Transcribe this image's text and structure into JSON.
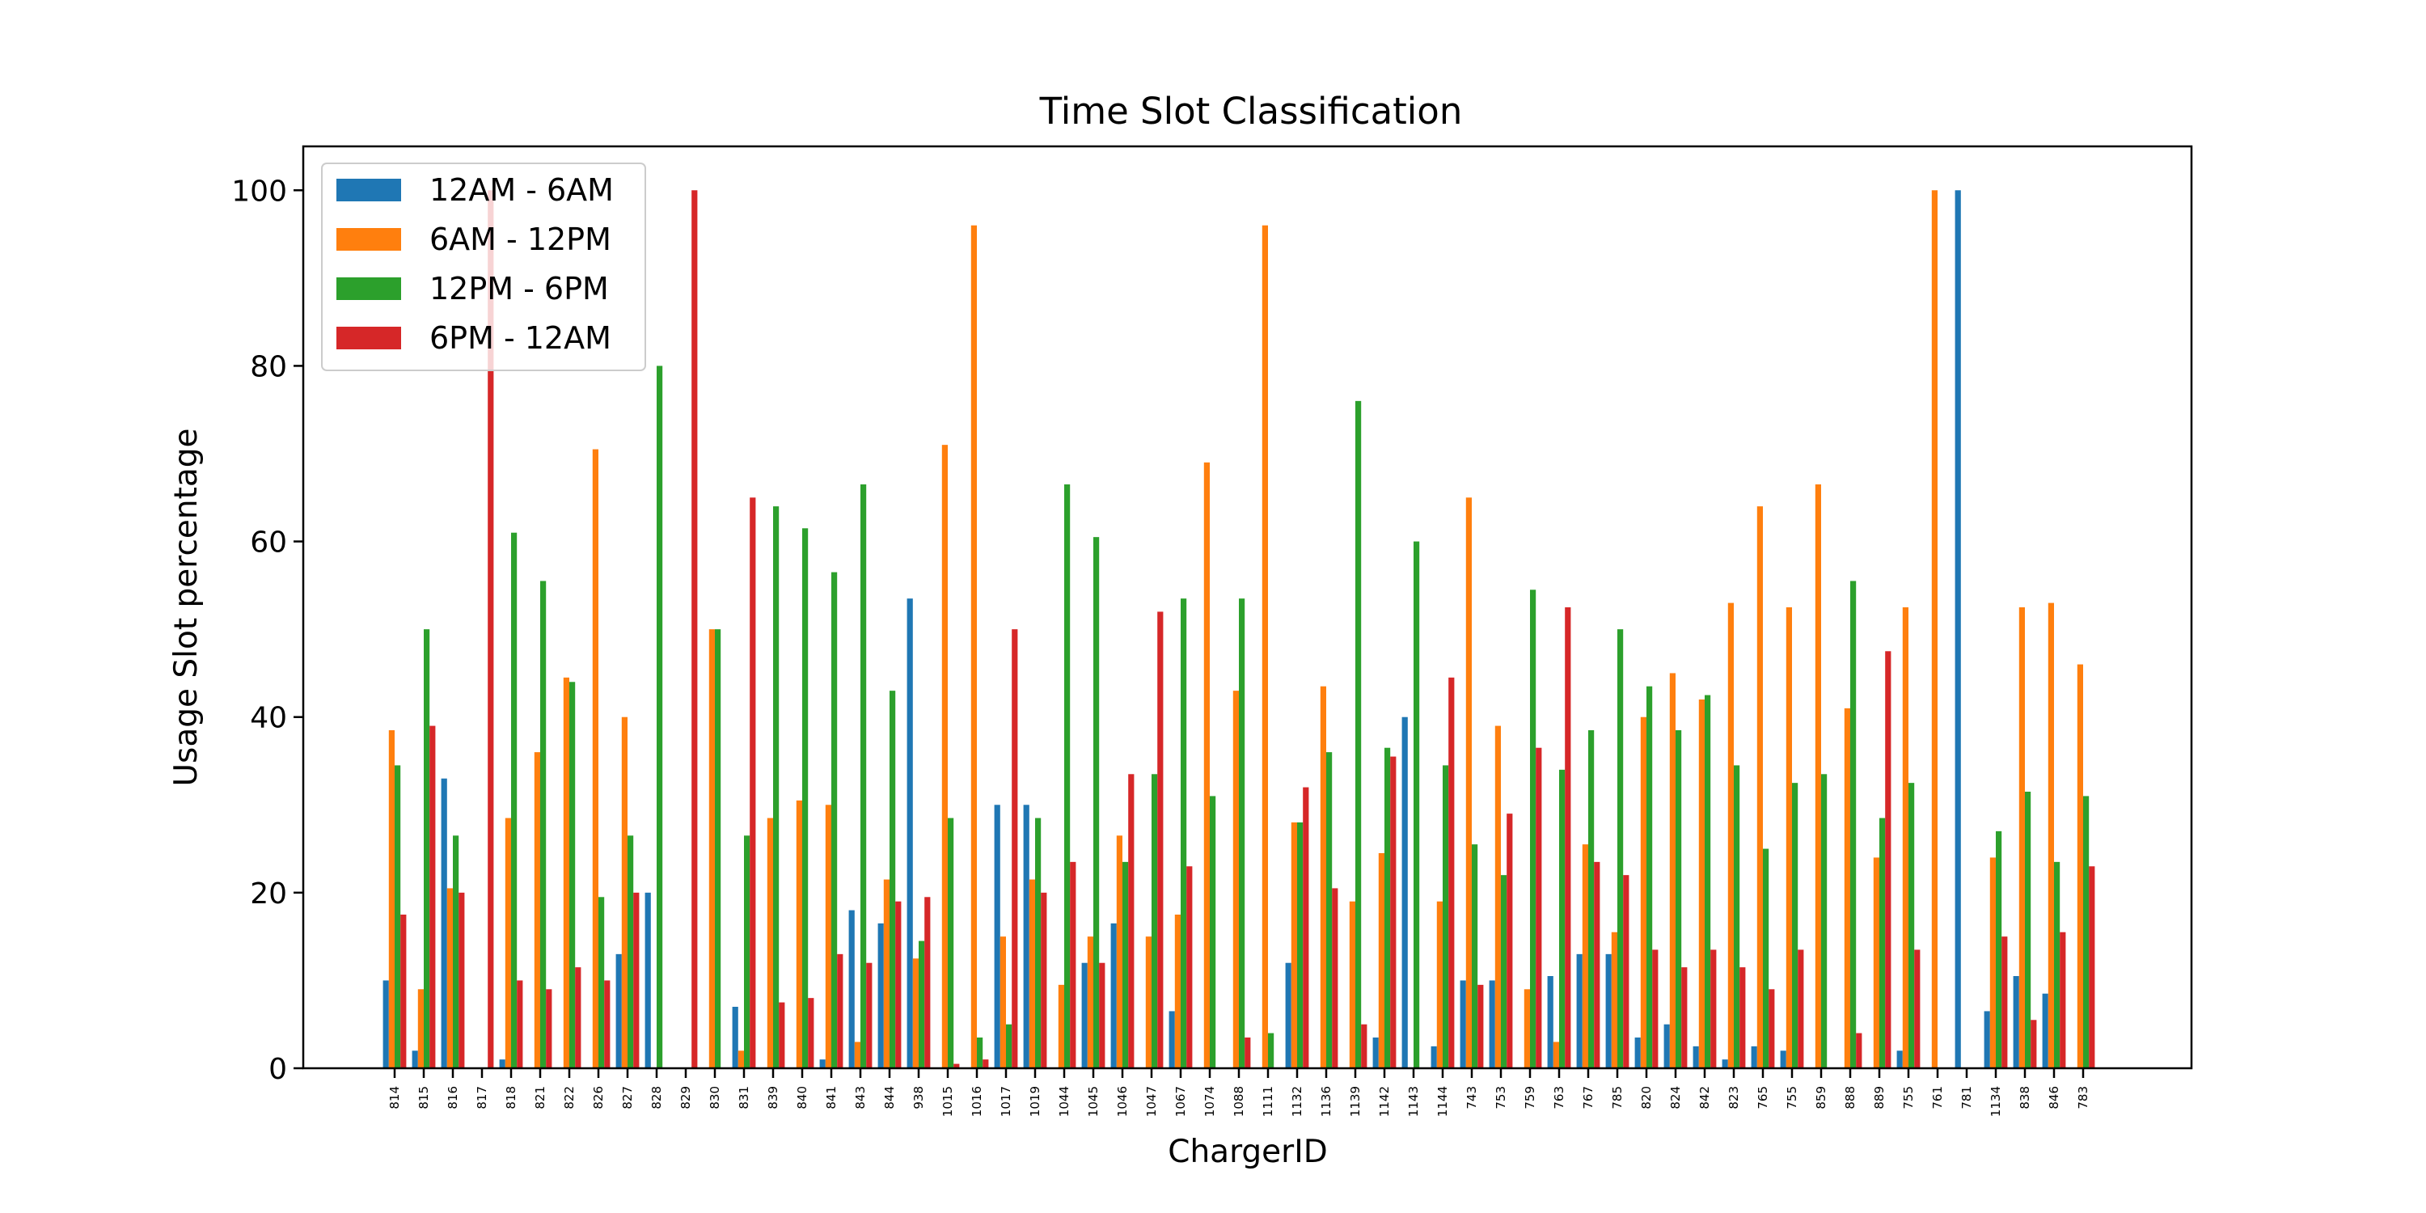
{
  "chart_data": {
    "type": "bar",
    "title": "Time Slot Classification",
    "xlabel": "ChargerID",
    "ylabel": "Usage Slot percentage",
    "ylim": [
      0,
      105
    ],
    "yticks": [
      0,
      20,
      40,
      60,
      80,
      100
    ],
    "grid": false,
    "legend_position": "top-left",
    "categories": [
      "814",
      "815",
      "816",
      "817",
      "818",
      "821",
      "822",
      "826",
      "827",
      "828",
      "829",
      "830",
      "831",
      "839",
      "840",
      "841",
      "843",
      "844",
      "938",
      "1015",
      "1016",
      "1017",
      "1019",
      "1044",
      "1045",
      "1046",
      "1047",
      "1067",
      "1074",
      "1088",
      "1111",
      "1132",
      "1136",
      "1139",
      "1142",
      "1143",
      "1144",
      "743",
      "753",
      "759",
      "763",
      "767",
      "785",
      "820",
      "824",
      "842",
      "823",
      "765",
      "755",
      "859",
      "888",
      "889",
      "755",
      "761",
      "781",
      "1134",
      "838",
      "846",
      "783"
    ],
    "series": [
      {
        "name": "12AM - 6AM",
        "color": "#1f77b4",
        "values": [
          10,
          2,
          33,
          0,
          1,
          0,
          0,
          0,
          13,
          20,
          0,
          0,
          7,
          0,
          0,
          1,
          18,
          16.5,
          53.5,
          0,
          0,
          30,
          30,
          0,
          12,
          16.5,
          0,
          6.5,
          0,
          0,
          0,
          12,
          0,
          0,
          3.5,
          40,
          2.5,
          10,
          10,
          0,
          10.5,
          13,
          13,
          3.5,
          5,
          2.5,
          1,
          2.5,
          2,
          0,
          0,
          0,
          2,
          0,
          100,
          6.5,
          10.5,
          8.5,
          0
        ]
      },
      {
        "name": "6AM - 12PM",
        "color": "#ff7f0e",
        "values": [
          38.5,
          9,
          20.5,
          0,
          28.5,
          36,
          44.5,
          70.5,
          40,
          0,
          0,
          50,
          2,
          28.5,
          30.5,
          30,
          3,
          21.5,
          12.5,
          71,
          96,
          15,
          21.5,
          9.5,
          15,
          26.5,
          15,
          17.5,
          69,
          43,
          96,
          28,
          43.5,
          19,
          24.5,
          0,
          19,
          65,
          39,
          9,
          3,
          25.5,
          15.5,
          40,
          45,
          42,
          53,
          64,
          52.5,
          66.5,
          41,
          24,
          52.5,
          100,
          0,
          24,
          52.5,
          53,
          46
        ]
      },
      {
        "name": "12PM - 6PM",
        "color": "#2ca02c",
        "values": [
          34.5,
          50,
          26.5,
          0,
          61,
          55.5,
          44,
          19.5,
          26.5,
          80,
          0,
          50,
          26.5,
          64,
          61.5,
          56.5,
          66.5,
          43,
          14.5,
          28.5,
          3.5,
          5,
          28.5,
          66.5,
          60.5,
          23.5,
          33.5,
          53.5,
          31,
          53.5,
          4,
          28,
          36,
          76,
          36.5,
          60,
          34.5,
          25.5,
          22,
          54.5,
          34,
          38.5,
          50,
          43.5,
          38.5,
          42.5,
          34.5,
          25,
          32.5,
          33.5,
          55.5,
          28.5,
          32.5,
          0,
          0,
          27,
          31.5,
          23.5,
          31
        ]
      },
      {
        "name": "6PM - 12AM",
        "color": "#d62728",
        "values": [
          17.5,
          39,
          20,
          100,
          10,
          9,
          11.5,
          10,
          20,
          0,
          100,
          0,
          65,
          7.5,
          8,
          13,
          12,
          19,
          19.5,
          0.5,
          1,
          50,
          20,
          23.5,
          12,
          33.5,
          52,
          23,
          0,
          3.5,
          0,
          32,
          20.5,
          5,
          35.5,
          0,
          44.5,
          9.5,
          29,
          36.5,
          52.5,
          23.5,
          22,
          13.5,
          11.5,
          13.5,
          11.5,
          9,
          13.5,
          0,
          4,
          47.5,
          13.5,
          0,
          0,
          15,
          5.5,
          15.5,
          23
        ]
      }
    ]
  }
}
